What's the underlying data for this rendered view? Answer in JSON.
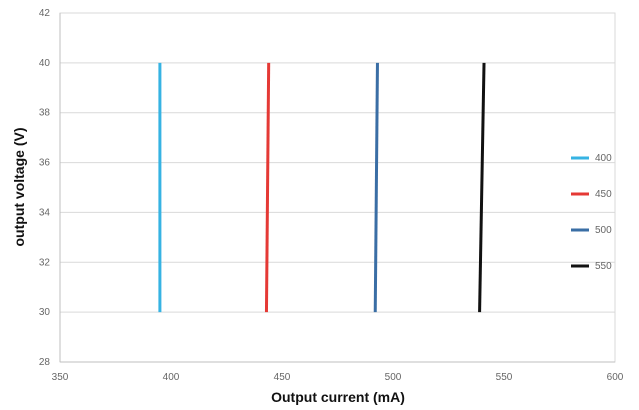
{
  "chart_data": {
    "type": "line",
    "title": "",
    "xlabel": "Output current (mA)",
    "ylabel": "output voltage (V)",
    "xlim": [
      350,
      600
    ],
    "ylim": [
      28,
      42
    ],
    "x_ticks": [
      350,
      400,
      450,
      500,
      550,
      600
    ],
    "y_ticks": [
      28,
      30,
      32,
      34,
      36,
      38,
      40,
      42
    ],
    "grid": "horizontal",
    "legend_position": "right",
    "series": [
      {
        "name": "400",
        "color": "#36B3E3",
        "points": [
          {
            "x": 395,
            "y": 30
          },
          {
            "x": 395,
            "y": 40
          }
        ]
      },
      {
        "name": "450",
        "color": "#E53935",
        "points": [
          {
            "x": 443,
            "y": 30
          },
          {
            "x": 444,
            "y": 40
          }
        ]
      },
      {
        "name": "500",
        "color": "#3A6EA5",
        "points": [
          {
            "x": 492,
            "y": 30
          },
          {
            "x": 493,
            "y": 40
          }
        ]
      },
      {
        "name": "550",
        "color": "#111111",
        "points": [
          {
            "x": 539,
            "y": 30
          },
          {
            "x": 541,
            "y": 40
          }
        ]
      }
    ]
  }
}
